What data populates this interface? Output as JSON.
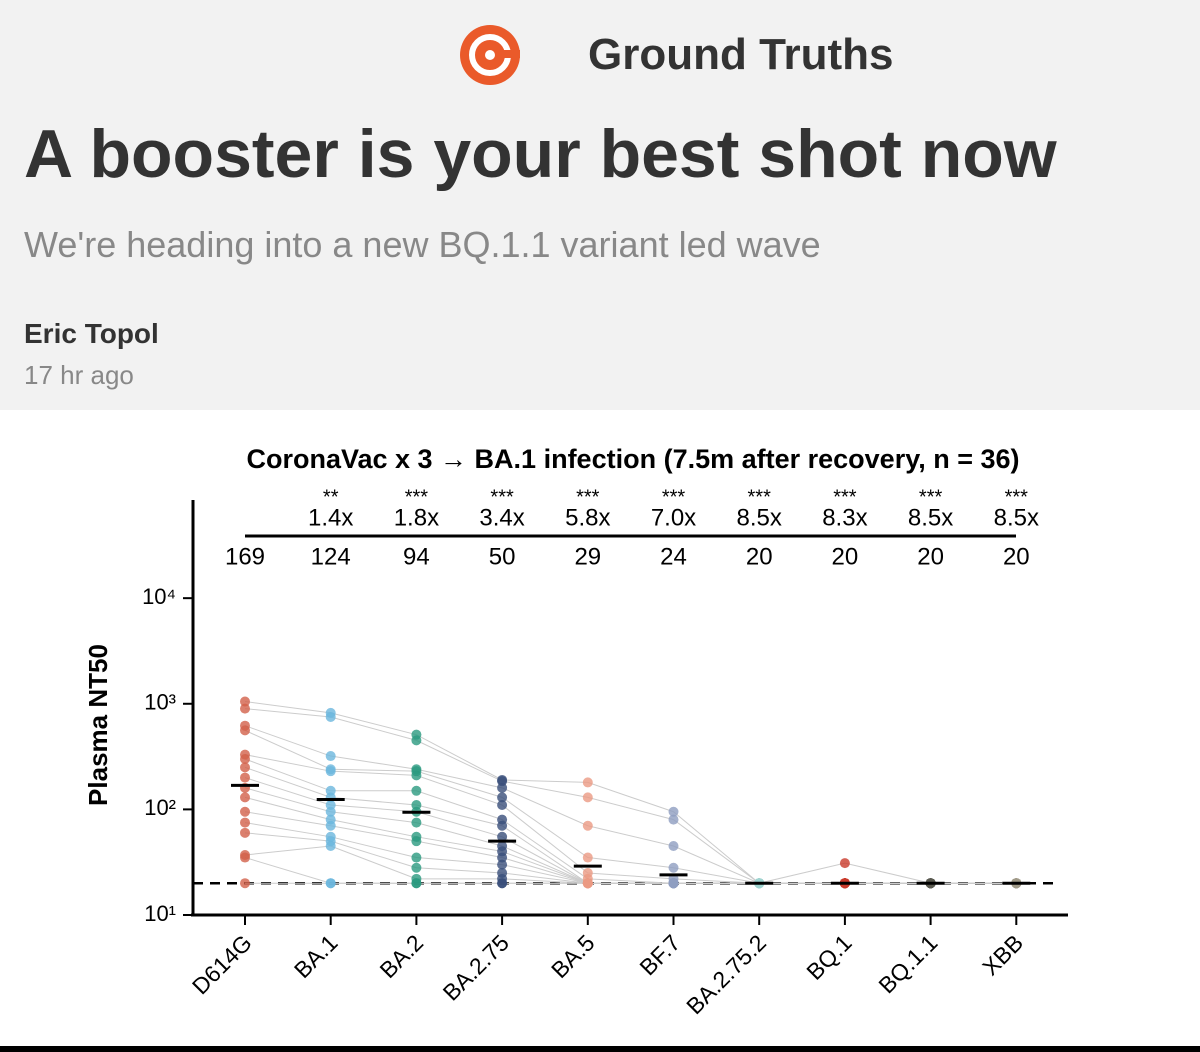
{
  "header": {
    "publication": "Ground Truths",
    "title": "A booster is your best shot now",
    "subtitle": "We're heading into a new BQ.1.1 variant led wave",
    "author": "Eric Topol",
    "time": "17 hr ago"
  },
  "chart_data": {
    "type": "strip",
    "title": "CoronaVac x 3 → BA.1 infection  (7.5m after recovery, n = 36)",
    "y_label": "Plasma NT50",
    "log_y": true,
    "categories": [
      "D614G",
      "BA.1",
      "BA.2",
      "BA.2.75",
      "BA.5",
      "BF.7",
      "BA.2.75.2",
      "BQ.1",
      "BQ.1.1",
      "XBB"
    ],
    "colors": [
      "#d2604a",
      "#6bb7dd",
      "#2a9a7f",
      "#3a4f7a",
      "#eb9a83",
      "#8e9dc0",
      "#9fd3d0",
      "#c93a2a",
      "#5a5a50",
      "#a09a88"
    ],
    "medians": [
      169,
      124,
      94,
      50,
      29,
      24,
      20,
      20,
      20,
      20
    ],
    "significance": [
      null,
      "**",
      "***",
      "***",
      "***",
      "***",
      "***",
      "***",
      "***",
      "***"
    ],
    "fold_labels": [
      null,
      "1.4x",
      "1.8x",
      "3.4x",
      "5.8x",
      "7.0x",
      "8.5x",
      "8.3x",
      "8.5x",
      "8.5x"
    ],
    "threshold": 20,
    "points": [
      [
        1050,
        900,
        620,
        560,
        330,
        300,
        250,
        200,
        160,
        130,
        95,
        75,
        60,
        37,
        35,
        20
      ],
      [
        820,
        750,
        320,
        240,
        230,
        150,
        130,
        110,
        95,
        80,
        70,
        55,
        50,
        45,
        20,
        20
      ],
      [
        510,
        450,
        240,
        230,
        210,
        150,
        110,
        95,
        75,
        55,
        50,
        35,
        28,
        22,
        20,
        20
      ],
      [
        190,
        185,
        160,
        130,
        110,
        80,
        70,
        55,
        45,
        40,
        35,
        30,
        25,
        22,
        20,
        20
      ],
      [
        180,
        130,
        70,
        35,
        25,
        22,
        20,
        20,
        20,
        20,
        20,
        20,
        20,
        20,
        20,
        20
      ],
      [
        95,
        80,
        45,
        28,
        22,
        20,
        20,
        20,
        20,
        20,
        20,
        20,
        20,
        20,
        20,
        20
      ],
      [
        20,
        20,
        20,
        20,
        20,
        20,
        20,
        20,
        20,
        20,
        20,
        20,
        20,
        20,
        20,
        20
      ],
      [
        31,
        20,
        20,
        20,
        20,
        20,
        20,
        20,
        20,
        20,
        20,
        20,
        20,
        20,
        20,
        20
      ],
      [
        20,
        20,
        20,
        20,
        20,
        20,
        20,
        20,
        20,
        20,
        20,
        20,
        20,
        20,
        20,
        20
      ],
      [
        20,
        20,
        20,
        20,
        20,
        20,
        20,
        20,
        20,
        20,
        20,
        20,
        20,
        20,
        20,
        20
      ]
    ],
    "ylim": [
      10,
      85000
    ],
    "yticks": [
      {
        "value": 10,
        "label": "10¹"
      },
      {
        "value": 100,
        "label": "10²"
      },
      {
        "value": 1000,
        "label": "10³"
      },
      {
        "value": 10000,
        "label": "10⁴"
      }
    ]
  }
}
